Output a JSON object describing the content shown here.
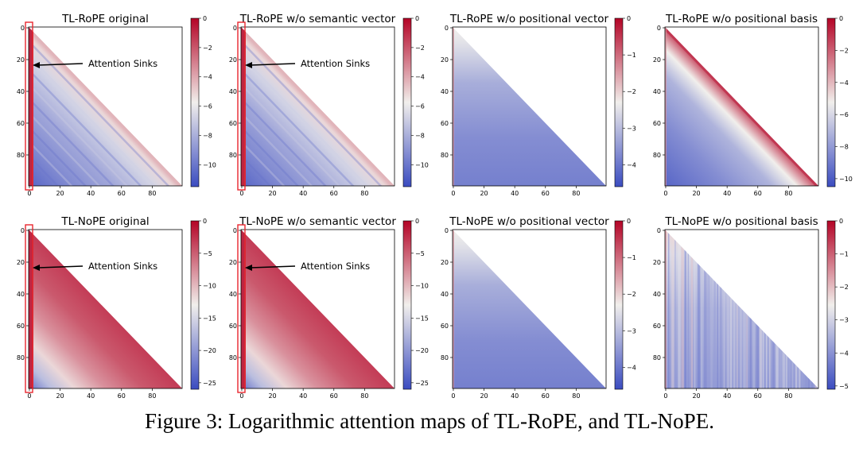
{
  "figure": {
    "caption": "Figure 3: Logarithmic attention maps of TL-RoPE, and TL-NoPE.",
    "colormap": "coolwarm",
    "colors": {
      "low": "#3b4cc0",
      "mid": "#f1efec",
      "high": "#b40426",
      "mask": "#ffffff",
      "sink_box": "#e8262d"
    }
  },
  "chart_data": [
    {
      "type": "heatmap",
      "title": "TL-RoPE original",
      "x_ticks": [
        "0",
        "20",
        "40",
        "60",
        "80"
      ],
      "y_ticks": [
        "0",
        "20",
        "40",
        "60",
        "80"
      ],
      "xlim": [
        0,
        99
      ],
      "ylim": [
        0,
        99
      ],
      "colorbar": {
        "min": -11.5,
        "max": 0,
        "ticks": [
          "0",
          "−2",
          "−4",
          "−6",
          "−8",
          "−10"
        ],
        "tick_values": [
          0,
          -2,
          -4,
          -6,
          -8,
          -10
        ]
      },
      "annotation": {
        "text": "Attention Sinks",
        "target_column": 2
      },
      "pattern": "rope"
    },
    {
      "type": "heatmap",
      "title": "TL-RoPE w/o semantic vector",
      "x_ticks": [
        "0",
        "20",
        "40",
        "60",
        "80"
      ],
      "y_ticks": [
        "0",
        "20",
        "40",
        "60",
        "80"
      ],
      "xlim": [
        0,
        99
      ],
      "ylim": [
        0,
        99
      ],
      "colorbar": {
        "min": -11.5,
        "max": 0,
        "ticks": [
          "0",
          "−2",
          "−4",
          "−6",
          "−8",
          "−10"
        ],
        "tick_values": [
          0,
          -2,
          -4,
          -6,
          -8,
          -10
        ]
      },
      "annotation": {
        "text": "Attention Sinks",
        "target_column": 2
      },
      "pattern": "rope"
    },
    {
      "type": "heatmap",
      "title": "TL-RoPE w/o positional vector",
      "x_ticks": [
        "0",
        "20",
        "40",
        "60",
        "80"
      ],
      "y_ticks": [
        "0",
        "20",
        "40",
        "60",
        "80"
      ],
      "xlim": [
        0,
        99
      ],
      "ylim": [
        0,
        99
      ],
      "colorbar": {
        "min": -4.6,
        "max": 0,
        "ticks": [
          "0",
          "−1",
          "−2",
          "−3",
          "−4"
        ],
        "tick_values": [
          0,
          -1,
          -2,
          -3,
          -4
        ]
      },
      "annotation": null,
      "pattern": "uniform"
    },
    {
      "type": "heatmap",
      "title": "TL-RoPE w/o positional basis",
      "x_ticks": [
        "0",
        "20",
        "40",
        "60",
        "80"
      ],
      "y_ticks": [
        "0",
        "20",
        "40",
        "60",
        "80"
      ],
      "xlim": [
        0,
        99
      ],
      "ylim": [
        0,
        99
      ],
      "colorbar": {
        "min": -10.5,
        "max": 0,
        "ticks": [
          "0",
          "−2",
          "−4",
          "−6",
          "−8",
          "−10"
        ],
        "tick_values": [
          0,
          -2,
          -4,
          -6,
          -8,
          -10
        ]
      },
      "annotation": null,
      "pattern": "diag"
    },
    {
      "type": "heatmap",
      "title": "TL-NoPE original",
      "x_ticks": [
        "0",
        "20",
        "40",
        "60",
        "80"
      ],
      "y_ticks": [
        "0",
        "20",
        "40",
        "60",
        "80"
      ],
      "xlim": [
        0,
        99
      ],
      "ylim": [
        0,
        99
      ],
      "colorbar": {
        "min": -26,
        "max": 0,
        "ticks": [
          "0",
          "−5",
          "−10",
          "−15",
          "−20",
          "−25"
        ],
        "tick_values": [
          0,
          -5,
          -10,
          -15,
          -20,
          -25
        ]
      },
      "annotation": {
        "text": "Attention Sinks",
        "target_column": 2
      },
      "pattern": "nope"
    },
    {
      "type": "heatmap",
      "title": "TL-NoPE w/o semantic vector",
      "x_ticks": [
        "0",
        "20",
        "40",
        "60",
        "80"
      ],
      "y_ticks": [
        "0",
        "20",
        "40",
        "60",
        "80"
      ],
      "xlim": [
        0,
        99
      ],
      "ylim": [
        0,
        99
      ],
      "colorbar": {
        "min": -26,
        "max": 0,
        "ticks": [
          "0",
          "−5",
          "−10",
          "−15",
          "−20",
          "−25"
        ],
        "tick_values": [
          0,
          -5,
          -10,
          -15,
          -20,
          -25
        ]
      },
      "annotation": {
        "text": "Attention Sinks",
        "target_column": 2
      },
      "pattern": "nope"
    },
    {
      "type": "heatmap",
      "title": "TL-NoPE w/o positional vector",
      "x_ticks": [
        "0",
        "20",
        "40",
        "60",
        "80"
      ],
      "y_ticks": [
        "0",
        "20",
        "40",
        "60",
        "80"
      ],
      "xlim": [
        0,
        99
      ],
      "ylim": [
        0,
        99
      ],
      "colorbar": {
        "min": -4.6,
        "max": 0,
        "ticks": [
          "0",
          "−1",
          "−2",
          "−3",
          "−4"
        ],
        "tick_values": [
          0,
          -1,
          -2,
          -3,
          -4
        ]
      },
      "annotation": null,
      "pattern": "uniform"
    },
    {
      "type": "heatmap",
      "title": "TL-NoPE w/o positional basis",
      "x_ticks": [
        "0",
        "20",
        "40",
        "60",
        "80"
      ],
      "y_ticks": [
        "0",
        "20",
        "40",
        "60",
        "80"
      ],
      "xlim": [
        0,
        99
      ],
      "ylim": [
        0,
        99
      ],
      "colorbar": {
        "min": -5.1,
        "max": 0,
        "ticks": [
          "0",
          "−1",
          "−2",
          "−3",
          "−4",
          "−5"
        ],
        "tick_values": [
          0,
          -1,
          -2,
          -3,
          -4,
          -5
        ]
      },
      "annotation": null,
      "pattern": "stripes"
    }
  ]
}
